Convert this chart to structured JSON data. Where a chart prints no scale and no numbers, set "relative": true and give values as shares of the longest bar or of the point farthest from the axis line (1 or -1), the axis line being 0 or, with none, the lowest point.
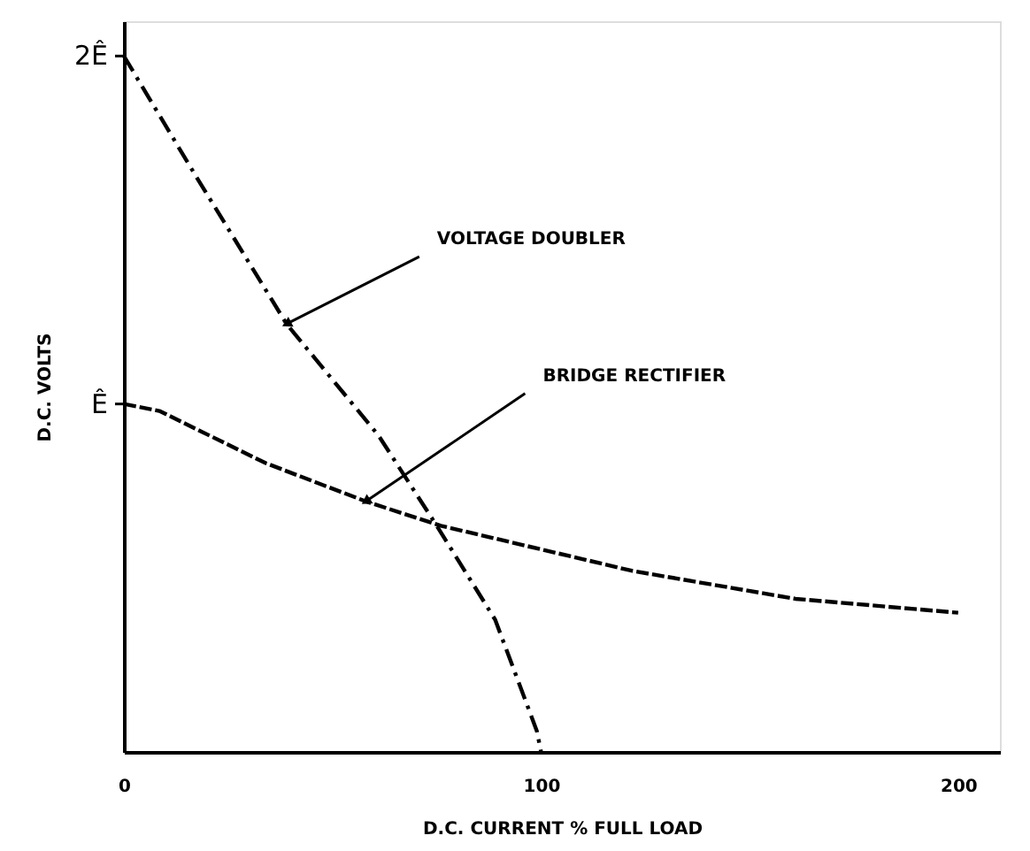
{
  "chart_data": {
    "type": "line",
    "relative": true,
    "xlabel": "D.C. CURRENT % FULL LOAD",
    "ylabel": "D.C. VOLTS",
    "xlim": [
      0,
      210
    ],
    "xticks": [
      0,
      100,
      200
    ],
    "grid": false,
    "marker": "none",
    "series": [
      {
        "color": "#000000",
        "line_style": "dashdot",
        "x": [
          0,
          17,
          39,
          61,
          75,
          89,
          99,
          100
        ],
        "values": [
          1.0,
          0.83,
          0.615,
          0.455,
          0.325,
          0.19,
          0.03,
          0.0
        ]
      },
      {
        "color": "#000000",
        "line_style": "dashed",
        "x": [
          0,
          8.5,
          34,
          58,
          76,
          122,
          161,
          200
        ],
        "values": [
          0.5,
          0.49,
          0.415,
          0.36,
          0.325,
          0.26,
          0.22,
          0.2
        ]
      }
    ],
    "annotations": [
      {
        "text": "2Ê",
        "x": 0,
        "y": 1.0
      },
      {
        "text": "Ê",
        "x": 0,
        "y": 0.5
      },
      {
        "text": "VOLTAGE DOUBLER",
        "x": 39,
        "y": 0.615
      },
      {
        "text": "BRIDGE RECTIFIER",
        "x": 58,
        "y": 0.36
      }
    ]
  }
}
